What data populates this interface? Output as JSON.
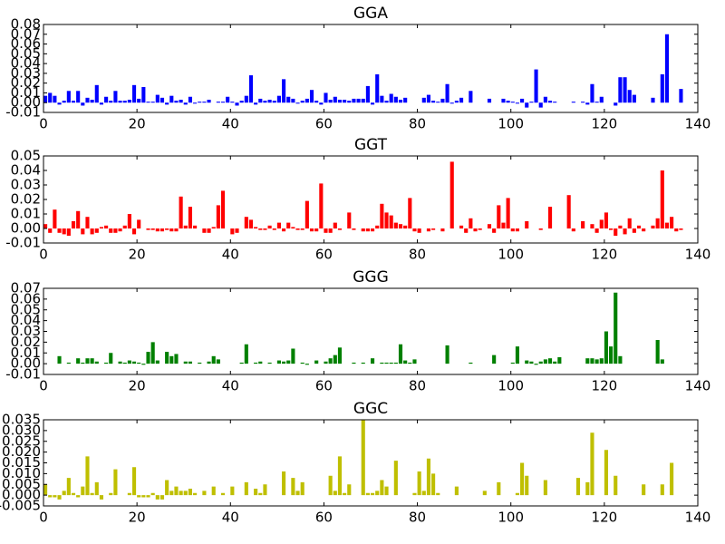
{
  "chart_data": [
    {
      "type": "bar",
      "title": "GGA",
      "color": "#0000ff",
      "x": [
        0,
        1,
        2,
        3,
        4,
        5,
        6,
        7,
        8,
        9,
        10,
        11,
        12,
        13,
        14,
        15,
        16,
        17,
        18,
        19,
        20,
        21,
        22,
        23,
        24,
        25,
        26,
        27,
        28,
        29,
        30,
        31,
        32,
        33,
        34,
        35,
        36,
        37,
        38,
        39,
        40,
        41,
        42,
        43,
        44,
        45,
        46,
        47,
        48,
        49,
        50,
        51,
        52,
        53,
        54,
        55,
        56,
        57,
        58,
        59,
        60,
        61,
        62,
        63,
        64,
        65,
        66,
        67,
        68,
        69,
        70,
        71,
        72,
        73,
        74,
        75,
        76,
        77,
        78,
        79,
        80,
        81,
        82,
        83,
        84,
        85,
        86,
        87,
        88,
        89,
        90,
        91,
        92,
        93,
        94,
        95,
        96,
        97,
        98,
        99,
        100,
        101,
        102,
        103,
        104,
        105,
        106,
        107,
        108,
        109,
        110,
        111,
        112,
        113,
        114,
        115,
        116,
        117,
        118,
        119,
        120,
        121,
        122,
        123,
        124,
        125,
        126,
        127,
        128,
        129,
        130,
        131,
        132,
        133,
        134,
        135,
        136,
        137
      ],
      "values": [
        0.007,
        0.01,
        0.007,
        -0.002,
        0.002,
        0.012,
        0.002,
        0.012,
        -0.003,
        0.005,
        0.003,
        0.018,
        -0.002,
        0.006,
        0.002,
        0.012,
        0.002,
        0.002,
        0.003,
        0.018,
        0.004,
        0.016,
        0.001,
        0.001,
        0.008,
        0.005,
        -0.002,
        0.007,
        0.002,
        0.003,
        -0.002,
        0.006,
        -0.001,
        0.001,
        0.001,
        0.003,
        null,
        0.001,
        0.001,
        0.006,
        0.001,
        -0.003,
        0.002,
        0.007,
        0.028,
        -0.002,
        0.004,
        0.002,
        0.003,
        0.002,
        0.007,
        0.024,
        0.006,
        0.004,
        -0.001,
        0.002,
        0.004,
        0.013,
        0.002,
        -0.002,
        0.01,
        0.003,
        0.006,
        0.003,
        0.003,
        0.002,
        0.004,
        0.004,
        0.004,
        0.017,
        -0.002,
        0.029,
        0.007,
        0.002,
        0.009,
        0.006,
        0.003,
        0.005,
        null,
        null,
        null,
        0.005,
        0.008,
        0.002,
        0.001,
        0.004,
        0.019,
        -0.001,
        0.002,
        0.005,
        0.0,
        0.012,
        null,
        null,
        null,
        0.004,
        null,
        null,
        0.004,
        0.002,
        0.001,
        -0.001,
        0.004,
        -0.005,
        0.001,
        0.034,
        -0.005,
        0.006,
        0.002,
        0.001,
        null,
        null,
        null,
        0.001,
        null,
        0.001,
        -0.002,
        0.019,
        0.001,
        0.006,
        null,
        null,
        -0.003,
        0.026,
        0.026,
        0.013,
        0.008,
        null,
        null,
        null,
        0.005,
        null,
        0.029,
        0.07,
        null,
        null,
        0.014,
        null
      ],
      "xlim": [
        0,
        140
      ],
      "xticks": [
        0,
        20,
        40,
        60,
        80,
        100,
        120,
        140
      ],
      "ylim": [
        -0.01,
        0.08
      ],
      "yticks": [
        -0.01,
        {
          "value": 0,
          "label": "0.00"
        },
        0.01,
        0.02,
        0.03,
        0.04,
        0.05,
        0.06,
        0.07,
        0.08
      ]
    },
    {
      "type": "bar",
      "title": "GGT",
      "color": "#ff0000",
      "x": [
        0,
        1,
        2,
        3,
        4,
        5,
        6,
        7,
        8,
        9,
        10,
        11,
        12,
        13,
        14,
        15,
        16,
        17,
        18,
        19,
        20,
        21,
        22,
        23,
        24,
        25,
        26,
        27,
        28,
        29,
        30,
        31,
        32,
        33,
        34,
        35,
        36,
        37,
        38,
        39,
        40,
        41,
        42,
        43,
        44,
        45,
        46,
        47,
        48,
        49,
        50,
        51,
        52,
        53,
        54,
        55,
        56,
        57,
        58,
        59,
        60,
        61,
        62,
        63,
        64,
        65,
        66,
        67,
        68,
        69,
        70,
        71,
        72,
        73,
        74,
        75,
        76,
        77,
        78,
        79,
        80,
        81,
        82,
        83,
        84,
        85,
        86,
        87,
        88,
        89,
        90,
        91,
        92,
        93,
        94,
        95,
        96,
        97,
        98,
        99,
        100,
        101,
        102,
        103,
        104,
        105,
        106,
        107,
        108,
        109,
        110,
        111,
        112,
        113,
        114,
        115,
        116,
        117,
        118,
        119,
        120,
        121,
        122,
        123,
        124,
        125,
        126,
        127,
        128,
        129,
        130,
        131,
        132,
        133,
        134,
        135,
        136,
        137
      ],
      "values": [
        0.003,
        -0.003,
        0.013,
        -0.003,
        -0.004,
        -0.005,
        0.005,
        0.012,
        -0.004,
        0.008,
        -0.004,
        -0.003,
        0.001,
        0.002,
        -0.003,
        -0.003,
        -0.002,
        0.002,
        0.01,
        -0.004,
        0.006,
        null,
        -0.001,
        -0.001,
        -0.002,
        -0.002,
        -0.001,
        -0.002,
        -0.002,
        0.022,
        0.002,
        0.015,
        0.002,
        0.0,
        -0.003,
        -0.003,
        0.001,
        0.016,
        0.026,
        null,
        -0.004,
        -0.003,
        null,
        0.008,
        0.006,
        0.001,
        -0.001,
        -0.001,
        0.002,
        -0.001,
        0.004,
        -0.002,
        0.004,
        0.001,
        -0.001,
        -0.001,
        0.019,
        -0.002,
        -0.002,
        0.031,
        -0.003,
        -0.003,
        0.004,
        -0.001,
        0.0,
        0.011,
        -0.001,
        null,
        -0.002,
        -0.002,
        -0.002,
        0.002,
        0.017,
        0.011,
        0.009,
        0.004,
        0.003,
        0.002,
        0.021,
        -0.002,
        -0.003,
        0.0,
        -0.002,
        -0.001,
        null,
        -0.002,
        null,
        0.046,
        0.0,
        0.002,
        -0.003,
        0.007,
        -0.002,
        -0.001,
        null,
        0.003,
        -0.003,
        0.016,
        0.004,
        0.021,
        -0.002,
        -0.002,
        null,
        0.005,
        null,
        0.0,
        -0.001,
        0.0,
        0.015,
        null,
        null,
        null,
        0.023,
        -0.002,
        null,
        0.005,
        null,
        0.003,
        -0.003,
        0.006,
        0.011,
        -0.001,
        -0.005,
        0.002,
        -0.004,
        0.007,
        -0.003,
        0.002,
        -0.002,
        null,
        0.002,
        0.007,
        0.04,
        0.004,
        0.008,
        -0.002,
        -0.001,
        null
      ],
      "xlim": [
        0,
        140
      ],
      "xticks": [
        0,
        20,
        40,
        60,
        80,
        100,
        120,
        140
      ],
      "ylim": [
        -0.01,
        0.05
      ],
      "yticks": [
        -0.01,
        {
          "value": 0,
          "label": "0.00"
        },
        0.01,
        0.02,
        0.03,
        0.04,
        0.05
      ]
    },
    {
      "type": "bar",
      "title": "GGG",
      "color": "#008000",
      "x": [
        0,
        1,
        2,
        3,
        4,
        5,
        6,
        7,
        8,
        9,
        10,
        11,
        12,
        13,
        14,
        15,
        16,
        17,
        18,
        19,
        20,
        21,
        22,
        23,
        24,
        25,
        26,
        27,
        28,
        29,
        30,
        31,
        32,
        33,
        34,
        35,
        36,
        37,
        38,
        39,
        40,
        41,
        42,
        43,
        44,
        45,
        46,
        47,
        48,
        49,
        50,
        51,
        52,
        53,
        54,
        55,
        56,
        57,
        58,
        59,
        60,
        61,
        62,
        63,
        64,
        65,
        66,
        67,
        68,
        69,
        70,
        71,
        72,
        73,
        74,
        75,
        76,
        77,
        78,
        79,
        80,
        81,
        82,
        83,
        84,
        85,
        86,
        87,
        88,
        89,
        90,
        91,
        92,
        93,
        94,
        95,
        96,
        97,
        98,
        99,
        100,
        101,
        102,
        103,
        104,
        105,
        106,
        107,
        108,
        109,
        110,
        111,
        112,
        113,
        114,
        115,
        116,
        117,
        118,
        119,
        120,
        121,
        122,
        123,
        124,
        125,
        126,
        127,
        128,
        129,
        130,
        131,
        132,
        133,
        134,
        135,
        136,
        137
      ],
      "values": [
        null,
        null,
        null,
        0.007,
        0.0,
        0.001,
        0.0,
        0.005,
        0.001,
        0.005,
        0.005,
        0.002,
        0.0,
        0.001,
        0.01,
        0.0,
        0.002,
        0.001,
        0.003,
        0.002,
        0.001,
        -0.001,
        0.011,
        0.02,
        0.003,
        0.0,
        0.011,
        0.007,
        0.009,
        null,
        0.002,
        0.002,
        null,
        0.001,
        0.0,
        0.002,
        0.007,
        0.004,
        0.0,
        null,
        null,
        null,
        0.001,
        0.018,
        null,
        0.001,
        0.002,
        0.0,
        0.001,
        0.0,
        0.003,
        0.002,
        0.003,
        0.014,
        0.0,
        0.001,
        -0.001,
        null,
        0.003,
        null,
        0.002,
        0.005,
        0.008,
        0.015,
        null,
        null,
        0.001,
        null,
        0.001,
        null,
        0.005,
        null,
        0.001,
        0.001,
        0.001,
        0.001,
        0.018,
        0.003,
        0.001,
        0.004,
        null,
        null,
        null,
        null,
        null,
        null,
        0.017,
        null,
        null,
        null,
        null,
        0.001,
        null,
        null,
        null,
        null,
        0.008,
        null,
        null,
        null,
        0.001,
        0.016,
        null,
        0.003,
        0.002,
        -0.001,
        0.002,
        0.004,
        0.005,
        0.002,
        0.006,
        null,
        null,
        null,
        0.0,
        null,
        0.005,
        0.005,
        0.004,
        0.005,
        0.03,
        0.016,
        0.066,
        0.007,
        null,
        null,
        null,
        null,
        null,
        null,
        null,
        0.022,
        0.004,
        null,
        null,
        null,
        null,
        null
      ],
      "xlim": [
        0,
        140
      ],
      "xticks": [
        0,
        20,
        40,
        60,
        80,
        100,
        120,
        140
      ],
      "ylim": [
        -0.01,
        0.07
      ],
      "yticks": [
        -0.01,
        {
          "value": 0,
          "label": "0.00"
        },
        0.01,
        0.02,
        0.03,
        0.04,
        0.05,
        0.06,
        0.07
      ]
    },
    {
      "type": "bar",
      "title": "GGC",
      "color": "#bfbf00",
      "x": [
        0,
        1,
        2,
        3,
        4,
        5,
        6,
        7,
        8,
        9,
        10,
        11,
        12,
        13,
        14,
        15,
        16,
        17,
        18,
        19,
        20,
        21,
        22,
        23,
        24,
        25,
        26,
        27,
        28,
        29,
        30,
        31,
        32,
        33,
        34,
        35,
        36,
        37,
        38,
        39,
        40,
        41,
        42,
        43,
        44,
        45,
        46,
        47,
        48,
        49,
        50,
        51,
        52,
        53,
        54,
        55,
        56,
        57,
        58,
        59,
        60,
        61,
        62,
        63,
        64,
        65,
        66,
        67,
        68,
        69,
        70,
        71,
        72,
        73,
        74,
        75,
        76,
        77,
        78,
        79,
        80,
        81,
        82,
        83,
        84,
        85,
        86,
        87,
        88,
        89,
        90,
        91,
        92,
        93,
        94,
        95,
        96,
        97,
        98,
        99,
        100,
        101,
        102,
        103,
        104,
        105,
        106,
        107,
        108,
        109,
        110,
        111,
        112,
        113,
        114,
        115,
        116,
        117,
        118,
        119,
        120,
        121,
        122,
        123,
        124,
        125,
        126,
        127,
        128,
        129,
        130,
        131,
        132,
        133,
        134,
        135,
        136,
        137
      ],
      "values": [
        0.005,
        -0.001,
        -0.001,
        -0.002,
        0.002,
        0.008,
        0.001,
        -0.001,
        0.004,
        0.018,
        0.001,
        0.006,
        -0.002,
        null,
        0.001,
        0.012,
        null,
        null,
        0.001,
        0.013,
        -0.001,
        -0.001,
        -0.001,
        0.001,
        -0.002,
        -0.002,
        0.007,
        0.002,
        0.004,
        0.002,
        0.002,
        0.003,
        0.001,
        null,
        0.002,
        null,
        0.004,
        null,
        0.001,
        null,
        0.004,
        0.0,
        0.0,
        0.006,
        null,
        0.003,
        0.001,
        0.005,
        null,
        0.0,
        null,
        0.011,
        null,
        0.008,
        0.002,
        0.006,
        null,
        null,
        null,
        0.0,
        null,
        0.009,
        0.002,
        0.018,
        0.001,
        0.005,
        null,
        null,
        0.035,
        0.001,
        0.001,
        0.002,
        0.007,
        0.004,
        0.0,
        0.016,
        null,
        null,
        null,
        0.001,
        0.011,
        0.002,
        0.017,
        0.01,
        0.001,
        0.0,
        0.0,
        null,
        0.004,
        null,
        null,
        null,
        null,
        null,
        0.002,
        null,
        null,
        0.006,
        null,
        null,
        null,
        0.001,
        0.015,
        0.009,
        null,
        null,
        null,
        0.007,
        null,
        null,
        null,
        null,
        null,
        null,
        0.008,
        null,
        0.006,
        0.029,
        null,
        null,
        0.021,
        null,
        0.009,
        null,
        null,
        null,
        null,
        null,
        0.005,
        null,
        null,
        null,
        0.005,
        null,
        0.015,
        null,
        null,
        null
      ],
      "xlim": [
        0,
        140
      ],
      "xticks": [
        0,
        20,
        40,
        60,
        80,
        100,
        120,
        140
      ],
      "ylim": [
        -0.005,
        0.035
      ],
      "yticks": [
        -0.005,
        {
          "value": 0,
          "label": "0.000"
        },
        0.005,
        {
          "value": 0.01,
          "label": "0.010"
        },
        0.015,
        {
          "value": 0.02,
          "label": "0.020"
        },
        0.025,
        {
          "value": 0.03,
          "label": "0.030"
        },
        0.035
      ]
    }
  ]
}
